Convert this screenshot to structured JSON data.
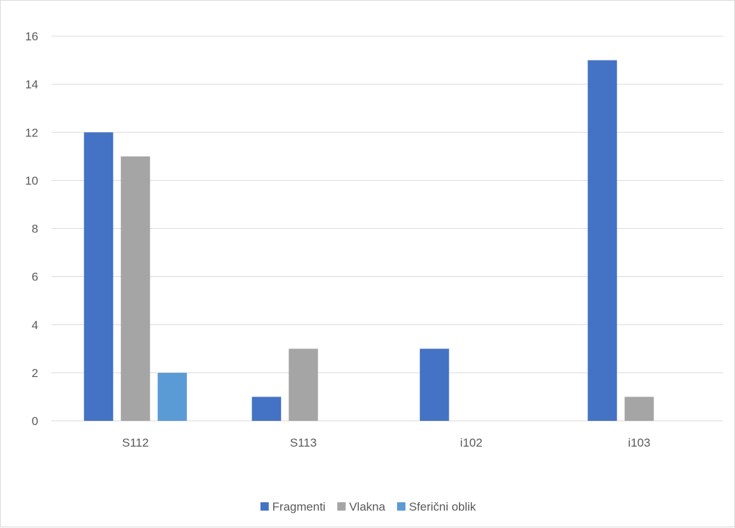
{
  "chart_data": {
    "type": "bar",
    "title": "",
    "xlabel": "",
    "ylabel": "",
    "categories": [
      "S112",
      "S113",
      "i102",
      "i103"
    ],
    "series": [
      {
        "name": "Fragmenti",
        "color": "#4472C4",
        "values": [
          12,
          1,
          3,
          15
        ]
      },
      {
        "name": "Vlakna",
        "color": "#A5A5A5",
        "values": [
          11,
          3,
          0,
          1
        ]
      },
      {
        "name": "Sferični oblik",
        "color": "#5B9BD5",
        "values": [
          2,
          0,
          0,
          0
        ]
      }
    ],
    "ylim": [
      0,
      16
    ],
    "yticks": [
      "0",
      "2",
      "4",
      "6",
      "8",
      "10",
      "12",
      "14",
      "16"
    ],
    "grid": true,
    "legend_position": "bottom",
    "colors": {
      "gridline": "#d9d9d9",
      "text": "#595959",
      "border": "#d9d9d9"
    }
  }
}
